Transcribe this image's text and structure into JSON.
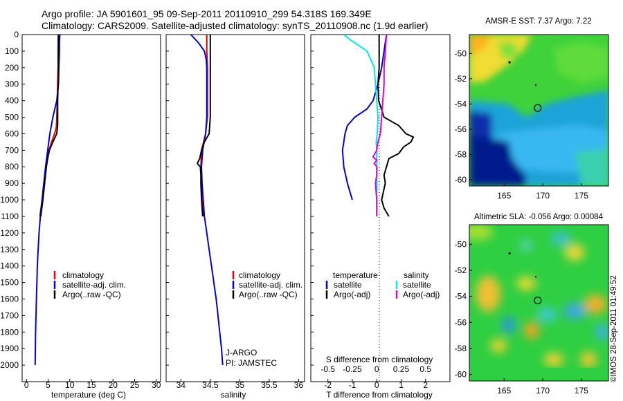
{
  "header": {
    "line1": "Argo profile: JA 5901601_95 09-Sep-2011 20110910_299 54.318S 169.349E",
    "line2": "Climatology: CARS2009. Satellite-adjusted climatology: synTS_20110908.nc (1.9d earlier)"
  },
  "depth_axis": {
    "ticks": [
      "0",
      "100",
      "200",
      "300",
      "400",
      "500",
      "600",
      "700",
      "800",
      "900",
      "1000",
      "1100",
      "1200",
      "1300",
      "1400",
      "1500",
      "1600",
      "1700",
      "1800",
      "1900",
      "2000"
    ]
  },
  "colors": {
    "climatology": "#e00000",
    "satellite": "#0000e0",
    "argo": "#000000",
    "salinity_satellite": "#00e8e8",
    "salinity_argo": "#e000e0"
  },
  "chart_data": [
    {
      "type": "line",
      "id": "temperature",
      "xlabel": "temperature (deg C)",
      "ylim": [
        0,
        2100
      ],
      "xlim": [
        -1,
        31
      ],
      "xticks": [
        "0",
        "5",
        "10",
        "15",
        "20",
        "25",
        "30"
      ],
      "legend": [
        "climatology",
        "satellite-adj. clim.",
        "Argo(..raw -QC)"
      ],
      "series": [
        {
          "name": "climatology",
          "color": "#e00000",
          "depth": [
            0,
            100,
            200,
            300,
            400,
            500,
            560,
            600,
            650,
            700,
            800,
            900,
            1000,
            1100
          ],
          "values": [
            7.3,
            7.3,
            7.3,
            7.2,
            7.1,
            7.0,
            6.9,
            6.5,
            5.8,
            5.2,
            4.5,
            4.0,
            3.6,
            3.1
          ]
        },
        {
          "name": "satellite-adj. clim.",
          "color": "#0000e0",
          "depth": [
            0,
            50,
            100,
            200,
            300,
            400,
            500,
            600,
            700,
            800,
            900,
            1000,
            1100,
            1200,
            1300,
            1400,
            1500,
            1600,
            1700,
            1800,
            1900,
            2000
          ],
          "values": [
            7.7,
            7.6,
            7.6,
            7.5,
            7.4,
            7.0,
            6.1,
            5.4,
            4.9,
            4.4,
            4.0,
            3.6,
            3.2,
            2.9,
            2.7,
            2.5,
            2.4,
            2.3,
            2.2,
            2.1,
            2.05,
            2.0
          ]
        },
        {
          "name": "Argo(..raw -QC)",
          "color": "#000000",
          "depth": [
            0,
            100,
            200,
            300,
            400,
            500,
            550,
            600,
            650,
            700,
            750,
            800,
            900,
            1000,
            1100
          ],
          "values": [
            7.5,
            7.4,
            7.4,
            7.3,
            7.2,
            7.2,
            7.2,
            7.0,
            6.1,
            5.3,
            4.9,
            4.6,
            4.2,
            3.8,
            3.3
          ]
        }
      ]
    },
    {
      "type": "line",
      "id": "salinity",
      "xlabel": "salinity",
      "ylim": [
        0,
        2100
      ],
      "xlim": [
        33.75,
        36.1
      ],
      "xticks": [
        "34",
        "34.5",
        "35",
        "35.5",
        "36"
      ],
      "legend": [
        "climatology",
        "satellite-adj. clim.",
        "Argo(..raw -QC)"
      ],
      "annotation": [
        "J-ARGO",
        "PI: JAMSTEC"
      ],
      "series": [
        {
          "name": "climatology",
          "color": "#e00000",
          "depth": [
            0,
            100,
            200,
            300,
            400,
            500,
            600,
            700,
            800,
            900,
            1000,
            1100
          ],
          "values": [
            34.44,
            34.44,
            34.45,
            34.45,
            34.45,
            34.45,
            34.42,
            34.35,
            34.34,
            34.35,
            34.36,
            34.38
          ]
        },
        {
          "name": "satellite-adj. clim.",
          "color": "#0000e0",
          "depth": [
            0,
            50,
            100,
            150,
            200,
            300,
            400,
            500,
            600,
            700,
            800,
            900,
            1000,
            1100,
            1200,
            1300,
            1400,
            1500,
            1600,
            1700,
            1800,
            1900,
            2000
          ],
          "values": [
            34.17,
            34.3,
            34.4,
            34.43,
            34.44,
            34.44,
            34.44,
            34.44,
            34.42,
            34.37,
            34.35,
            34.36,
            34.38,
            34.4,
            34.44,
            34.48,
            34.52,
            34.56,
            34.6,
            34.63,
            34.66,
            34.69,
            34.71
          ]
        },
        {
          "name": "Argo(..raw -QC)",
          "color": "#000000",
          "depth": [
            0,
            100,
            200,
            300,
            400,
            500,
            600,
            650,
            700,
            750,
            780,
            800,
            850,
            900,
            1000,
            1100
          ],
          "values": [
            34.5,
            34.5,
            34.5,
            34.5,
            34.5,
            34.5,
            34.48,
            34.4,
            34.35,
            34.32,
            34.28,
            34.33,
            34.34,
            34.34,
            34.35,
            34.37
          ]
        }
      ]
    },
    {
      "type": "line",
      "id": "difference",
      "xlabel": "T difference from climatology",
      "xlabel2": "S difference from climatology",
      "ylim": [
        0,
        2100
      ],
      "xlim": [
        -2.7,
        3.0
      ],
      "xticks": [
        "-2",
        "-1",
        "0",
        "1",
        "2"
      ],
      "xticks2": [
        "-0.5",
        "-0.25",
        "0",
        "0.25",
        "0.5"
      ],
      "legend": {
        "temperature_header": "temperature",
        "salinity_header": "salinity",
        "temperature": [
          "satellite",
          "Argo(-adj)"
        ],
        "salinity": [
          "satellite",
          "Argo(-adj)"
        ]
      },
      "series": [
        {
          "name": "temperature satellite",
          "color": "#0000e0",
          "depth": [
            0,
            100,
            200,
            300,
            400,
            450,
            500,
            550,
            600,
            700,
            800,
            900,
            1000
          ],
          "values": [
            0.4,
            0.3,
            0.2,
            0.05,
            -0.15,
            -0.4,
            -0.9,
            -1.2,
            -1.3,
            -1.4,
            -1.35,
            -1.2,
            -1.0
          ]
        },
        {
          "name": "temperature Argo(-adj)",
          "color": "#000000",
          "depth": [
            0,
            100,
            200,
            300,
            400,
            500,
            550,
            600,
            620,
            650,
            680,
            720,
            750,
            800,
            850,
            900,
            1000,
            1050,
            1100
          ],
          "values": [
            0.1,
            0.1,
            0.1,
            0.05,
            0.08,
            0.3,
            0.9,
            1.2,
            1.5,
            1.4,
            1.1,
            0.9,
            0.5,
            0.4,
            0.3,
            0.35,
            0.2,
            0.3,
            0.5
          ]
        },
        {
          "name": "salinity satellite",
          "color": "#00e8e8",
          "depth": [
            0,
            30,
            80,
            100,
            200,
            300,
            400,
            500,
            600,
            650,
            700,
            800,
            900,
            1000,
            1100
          ],
          "values": [
            -1.35,
            -1.1,
            -0.6,
            -0.4,
            -0.1,
            -0.05,
            0.0,
            0.05,
            0.02,
            -0.02,
            0.0,
            0.0,
            0.0,
            0.0,
            0.0
          ]
        },
        {
          "name": "salinity Argo(-adj)",
          "color": "#e000e0",
          "depth": [
            0,
            100,
            200,
            300,
            400,
            500,
            600,
            650,
            700,
            740,
            760,
            780,
            800,
            850,
            900,
            1000,
            1100
          ],
          "values": [
            0.4,
            0.35,
            0.3,
            0.3,
            0.25,
            0.2,
            0.15,
            0.05,
            0.0,
            -0.15,
            0.0,
            -0.1,
            0.0,
            0.0,
            -0.05,
            0.0,
            0.0
          ]
        }
      ]
    },
    {
      "type": "heatmap",
      "id": "sst",
      "title": "AMSR-E SST: 7.37 Argo: 7.22",
      "xticks": [
        "165",
        "170",
        "175"
      ],
      "yticks": [
        "-50",
        "-52",
        "-54",
        "-56",
        "-58",
        "-60"
      ],
      "xlim": [
        160.5,
        178.5
      ],
      "ylim": [
        -60.5,
        -48.5
      ],
      "argo_position": [
        169.349,
        -54.318
      ]
    },
    {
      "type": "heatmap",
      "id": "sla",
      "title": "Altimetric SLA: -0.056 Argo: 0.00084",
      "xticks": [
        "165",
        "170",
        "175"
      ],
      "yticks": [
        "-50",
        "-52",
        "-54",
        "-56",
        "-58",
        "-60"
      ],
      "xlim": [
        160.5,
        178.5
      ],
      "ylim": [
        -60.5,
        -48.5
      ],
      "argo_position": [
        169.349,
        -54.318
      ]
    }
  ],
  "credit": "©IMOS 28-Sep-2011 01:49:52"
}
